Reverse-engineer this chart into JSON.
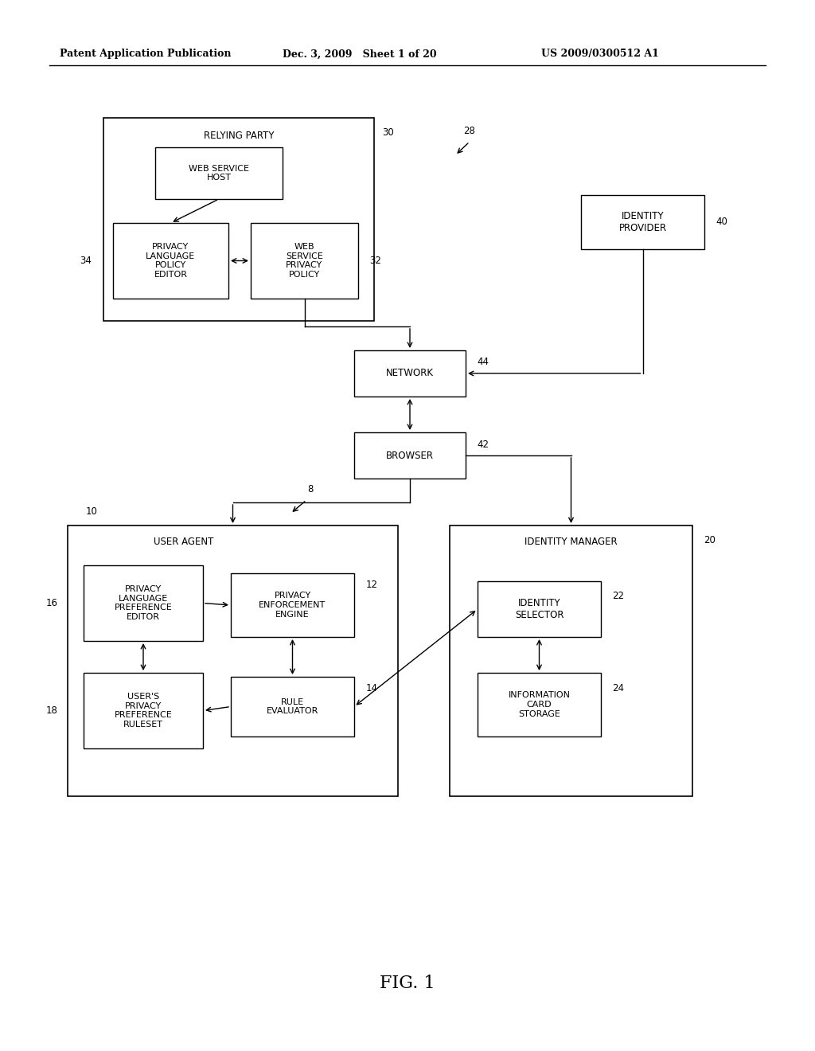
{
  "bg_color": "#ffffff",
  "header_left": "Patent Application Publication",
  "header_mid": "Dec. 3, 2009   Sheet 1 of 20",
  "header_right": "US 2009/0300512 A1",
  "fig_label": "FIG. 1"
}
